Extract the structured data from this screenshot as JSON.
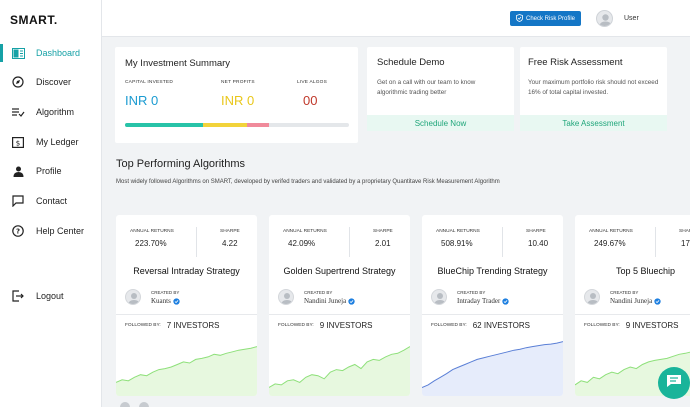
{
  "brand": "SMART.",
  "nav": [
    {
      "label": "Dashboard",
      "icon": "dashboard-icon",
      "active": true
    },
    {
      "label": "Discover",
      "icon": "compass-icon"
    },
    {
      "label": "Algorithm",
      "icon": "algorithm-icon"
    },
    {
      "label": "My Ledger",
      "icon": "ledger-icon"
    },
    {
      "label": "Profile",
      "icon": "user-icon"
    },
    {
      "label": "Contact",
      "icon": "chat-icon"
    },
    {
      "label": "Help Center",
      "icon": "help-icon"
    }
  ],
  "logout": "Logout",
  "topbar": {
    "risk_button": "Check Risk Profile",
    "user": "User"
  },
  "summary": {
    "title": "My Investment Summary",
    "capital_label": "CAPITAL INVESTED",
    "capital_value": "INR 0",
    "profit_label": "NET PROFITS",
    "profit_value": "INR 0",
    "algos_label": "LIVE ALGOS",
    "algos_value": "00",
    "colors": {
      "capital": "#1b9bd1",
      "profit": "#e9c71b",
      "algos": "#c0392b"
    }
  },
  "demo": {
    "title": "Schedule Demo",
    "text": "Get on a call with our team to know algorithmic trading better",
    "cta": "Schedule Now"
  },
  "risk": {
    "title": "Free Risk Assessment",
    "text": "Your maximum portfolio risk should not exceed 16% of total capital invested.",
    "cta": "Take Assessment"
  },
  "section": {
    "title": "Top Performing Algorithms",
    "subtitle": "Most widely followed Algorithms on SMART, developed by verifed traders and validated by a proprietary Quantitave Risk Measurement Algorithm"
  },
  "labels": {
    "annual_returns": "ANNUAL RETURNS",
    "sharpe": "SHARPE",
    "created_by": "CREATED BY",
    "followed_by": "FOLLOWED BY:"
  },
  "algos": [
    {
      "returns": "223.70%",
      "sharpe": "4.22",
      "name": "Reversal Intraday Strategy",
      "creator": "Kuants",
      "followers": "7 INVESTORS",
      "color": "#8ee07a",
      "fill": "#e7f8df"
    },
    {
      "returns": "42.09%",
      "sharpe": "2.01",
      "name": "Golden Supertrend Strategy",
      "creator": "Nandini Juneja",
      "followers": "9 INVESTORS",
      "color": "#8ee07a",
      "fill": "#e7f8df"
    },
    {
      "returns": "508.91%",
      "sharpe": "10.40",
      "name": "BlueChip Trending Strategy",
      "creator": "Intraday Trader",
      "followers": "62 INVESTORS",
      "color": "#5a7fd6",
      "fill": "#e6ecfb"
    },
    {
      "returns": "249.67%",
      "sharpe": "17",
      "name": "Top 5 Bluechip",
      "creator": "Nandini Juneja",
      "followers": "9 INVESTORS",
      "color": "#8ee07a",
      "fill": "#e7f8df"
    }
  ]
}
